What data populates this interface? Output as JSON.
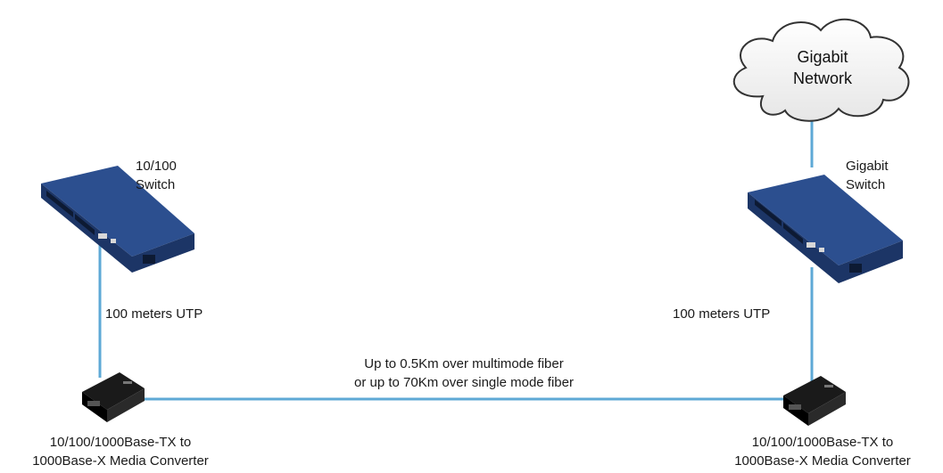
{
  "colors": {
    "cable": "#5ea9d6",
    "switch_top": "#2c4f8f",
    "switch_side": "#1c3566",
    "converter": "#1a1a1a"
  },
  "icons": [
    "cloud-icon",
    "switch-icon",
    "media-converter-icon"
  ],
  "cloud": {
    "line1": "Gigabit",
    "line2": "Network"
  },
  "left_switch": {
    "line1": "10/100",
    "line2": "Switch"
  },
  "right_switch": {
    "line1": "Gigabit",
    "line2": "Switch"
  },
  "left_cable_label": "100 meters UTP",
  "right_cable_label": "100 meters UTP",
  "fiber_label": {
    "line1": "Up to 0.5Km over multimode fiber",
    "line2": "or up to 70Km over single mode fiber"
  },
  "left_converter": {
    "line1": "10/100/1000Base-TX to",
    "line2": "1000Base-X Media Converter"
  },
  "right_converter": {
    "line1": "10/100/1000Base-TX to",
    "line2": "1000Base-X Media Converter"
  }
}
